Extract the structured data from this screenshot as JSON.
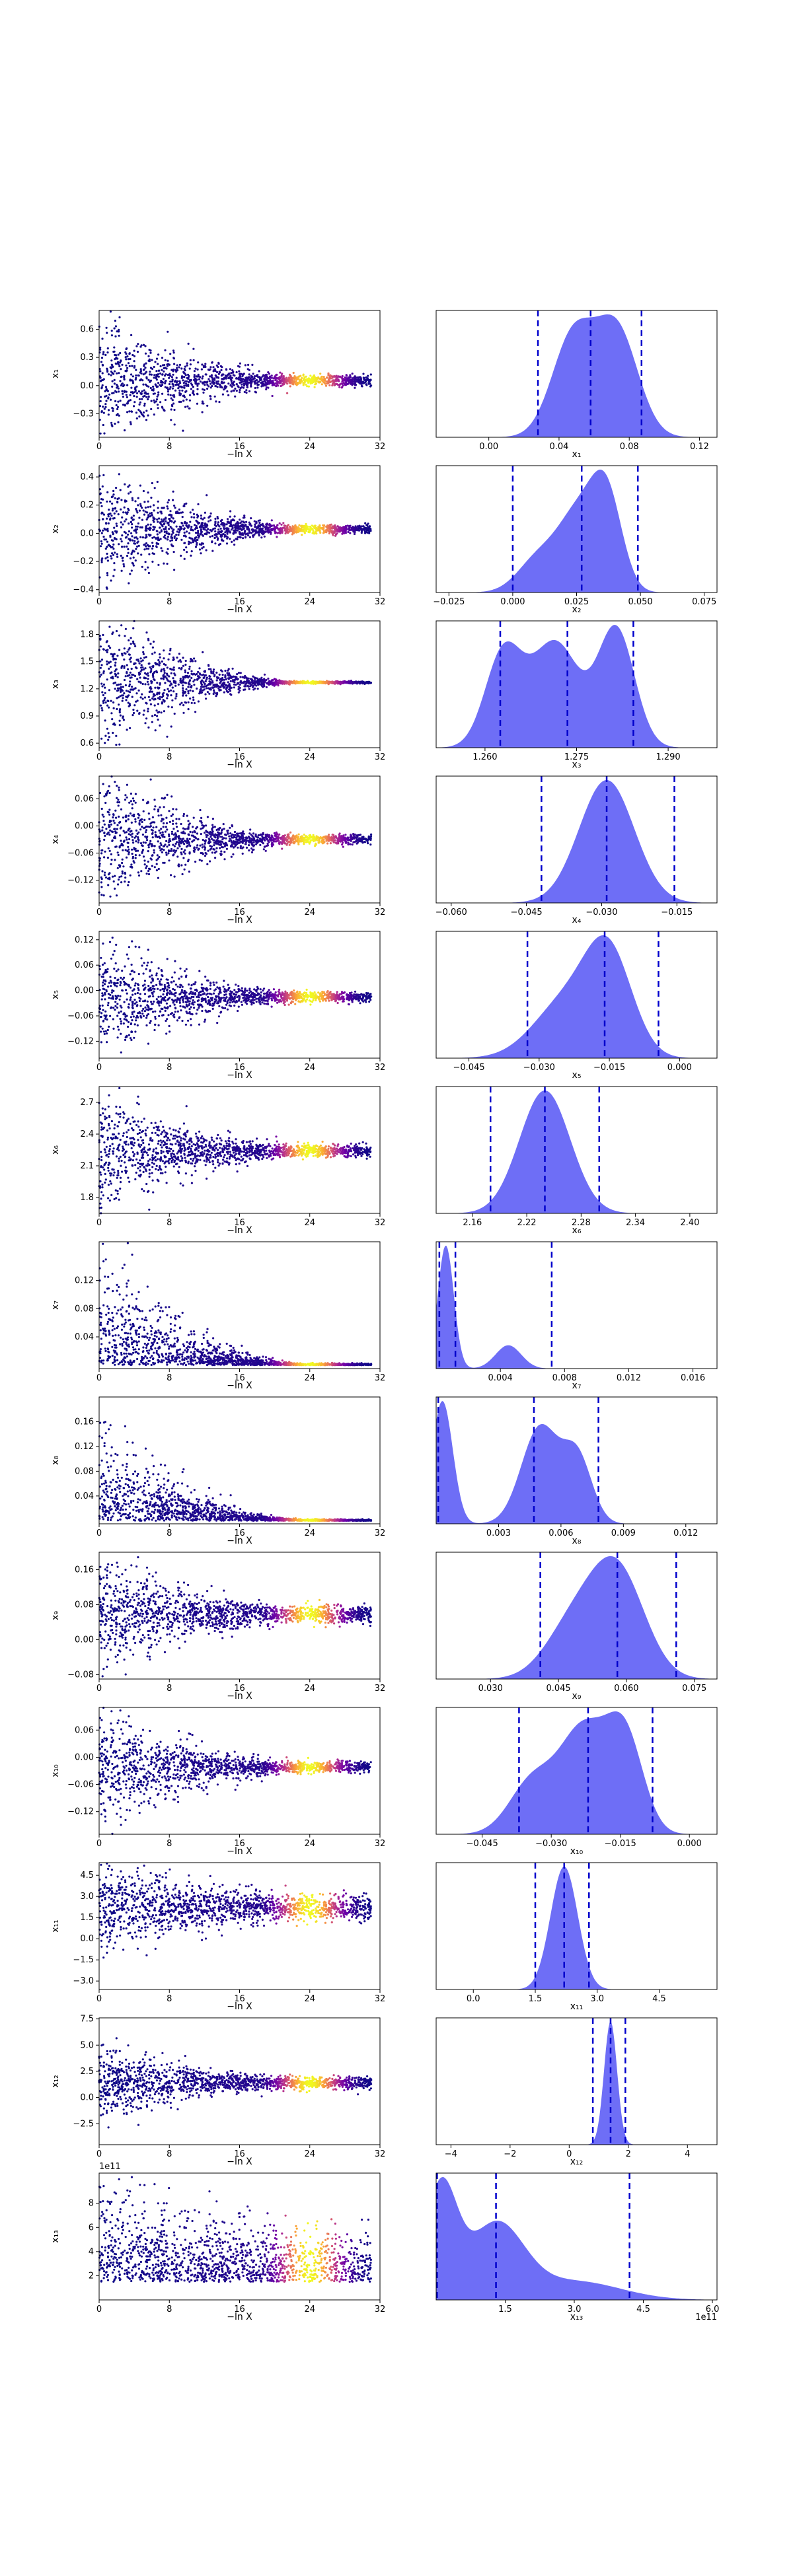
{
  "chart_data": {
    "type": "scatter",
    "layout": "trace-plot-grid",
    "left_xlabel": "−ln X",
    "left_xticks": [
      "0",
      "8",
      "16",
      "24",
      "32"
    ],
    "left_xlim": [
      0,
      32
    ],
    "cmap": [
      "#0d0887",
      "#6a00a8",
      "#b12a90",
      "#e16462",
      "#fca636",
      "#f0f921"
    ],
    "density_color": "#6666f5",
    "quantile_line_color": "#0000cc",
    "rows": [
      {
        "ylabel": "x₁",
        "yticks": [
          "−0.3",
          "0.0",
          "0.3",
          "0.6"
        ],
        "ylim": [
          -0.55,
          0.8
        ],
        "spread": [
          0.33,
          0.03
        ],
        "center": 0.055,
        "hist_xlabel": "x₁",
        "hist_xticks": [
          "0.00",
          "0.04",
          "0.08",
          "0.12"
        ],
        "hist_xlim": [
          -0.03,
          0.13
        ],
        "quantiles": [
          0.028,
          0.058,
          0.087
        ],
        "modes": [
          [
            0.048,
            0.012,
            0.85
          ],
          [
            0.073,
            0.012,
            0.9
          ]
        ],
        "offset": ""
      },
      {
        "ylabel": "x₂",
        "yticks": [
          "−0.4",
          "−0.2",
          "0.0",
          "0.2",
          "0.4"
        ],
        "ylim": [
          -0.42,
          0.48
        ],
        "spread": [
          0.22,
          0.015
        ],
        "center": 0.03,
        "hist_xlabel": "x₂",
        "hist_xticks": [
          "−0.025",
          "0.000",
          "0.025",
          "0.050",
          "0.075"
        ],
        "hist_xlim": [
          -0.03,
          0.08
        ],
        "quantiles": [
          0.0,
          0.027,
          0.049
        ],
        "modes": [
          [
            0.01,
            0.008,
            0.35
          ],
          [
            0.026,
            0.008,
            0.8
          ],
          [
            0.037,
            0.006,
            0.9
          ]
        ],
        "offset": ""
      },
      {
        "ylabel": "x₃",
        "yticks": [
          "0.6",
          "0.9",
          "1.2",
          "1.5",
          "1.8"
        ],
        "ylim": [
          0.55,
          1.95
        ],
        "spread": [
          0.4,
          0.006
        ],
        "center": 1.27,
        "hist_xlabel": "x₃",
        "hist_xticks": [
          "1.260",
          "1.275",
          "1.290"
        ],
        "hist_xlim": [
          1.252,
          1.298
        ],
        "quantiles": [
          1.2625,
          1.2735,
          1.2843
        ],
        "modes": [
          [
            1.263,
            0.003,
            0.75
          ],
          [
            1.2715,
            0.004,
            0.85
          ],
          [
            1.2815,
            0.003,
            0.95
          ]
        ],
        "offset": ""
      },
      {
        "ylabel": "x₄",
        "yticks": [
          "−0.12",
          "−0.06",
          "0.00",
          "0.06"
        ],
        "ylim": [
          -0.17,
          0.11
        ],
        "spread": [
          0.075,
          0.005
        ],
        "center": -0.03,
        "hist_xlabel": "x₄",
        "hist_xticks": [
          "−0.060",
          "−0.045",
          "−0.030",
          "−0.015"
        ],
        "hist_xlim": [
          -0.063,
          -0.007
        ],
        "quantiles": [
          -0.042,
          -0.029,
          -0.0155
        ],
        "modes": [
          [
            -0.029,
            0.0055,
            0.95
          ]
        ],
        "offset": ""
      },
      {
        "ylabel": "x₅",
        "yticks": [
          "−0.12",
          "−0.06",
          "0.00",
          "0.06",
          "0.12"
        ],
        "ylim": [
          -0.16,
          0.14
        ],
        "spread": [
          0.065,
          0.006
        ],
        "center": -0.015,
        "hist_xlabel": "x₅",
        "hist_xticks": [
          "−0.045",
          "−0.030",
          "−0.015",
          "0.000"
        ],
        "hist_xlim": [
          -0.052,
          0.008
        ],
        "quantiles": [
          -0.0325,
          -0.016,
          -0.0045
        ],
        "modes": [
          [
            -0.024,
            0.007,
            0.55
          ],
          [
            -0.015,
            0.005,
            0.9
          ]
        ],
        "offset": ""
      },
      {
        "ylabel": "x₆",
        "yticks": [
          "1.8",
          "2.1",
          "2.4",
          "2.7"
        ],
        "ylim": [
          1.65,
          2.85
        ],
        "spread": [
          0.27,
          0.03
        ],
        "center": 2.24,
        "hist_xlabel": "x₆",
        "hist_xticks": [
          "2.16",
          "2.22",
          "2.28",
          "2.34",
          "2.40"
        ],
        "hist_xlim": [
          2.12,
          2.43
        ],
        "quantiles": [
          2.18,
          2.24,
          2.3
        ],
        "modes": [
          [
            2.24,
            0.028,
            0.95
          ]
        ],
        "offset": ""
      },
      {
        "ylabel": "x₇",
        "yticks": [
          "0.04",
          "0.08",
          "0.12"
        ],
        "ylim": [
          -0.005,
          0.175
        ],
        "spread": [
          0.07,
          0.001
        ],
        "center": 0.0,
        "hist_xlabel": "x₇",
        "hist_xticks": [
          "0.004",
          "0.008",
          "0.012",
          "0.016"
        ],
        "hist_xlim": [
          0.0,
          0.0175
        ],
        "quantiles": [
          0.0002,
          0.0012,
          0.0072
        ],
        "modes": [
          [
            0.0006,
            0.0005,
            0.95
          ],
          [
            0.0045,
            0.0008,
            0.18
          ]
        ],
        "offset": ""
      },
      {
        "ylabel": "x₈",
        "yticks": [
          "0.04",
          "0.08",
          "0.12",
          "0.16"
        ],
        "ylim": [
          -0.005,
          0.2
        ],
        "spread": [
          0.07,
          0.001
        ],
        "center": 0.0,
        "hist_xlabel": "x₈",
        "hist_xticks": [
          "0.003",
          "0.006",
          "0.009",
          "0.012"
        ],
        "hist_xlim": [
          0.0,
          0.0135
        ],
        "quantiles": [
          0.0001,
          0.0047,
          0.0078
        ],
        "modes": [
          [
            0.0003,
            0.0005,
            0.95
          ],
          [
            0.005,
            0.0009,
            0.75
          ],
          [
            0.0068,
            0.0007,
            0.5
          ]
        ],
        "offset": ""
      },
      {
        "ylabel": "x₉",
        "yticks": [
          "−0.08",
          "0.00",
          "0.08",
          "0.16"
        ],
        "ylim": [
          -0.09,
          0.2
        ],
        "spread": [
          0.065,
          0.01
        ],
        "center": 0.058,
        "hist_xlabel": "x₉",
        "hist_xticks": [
          "0.030",
          "0.045",
          "0.060",
          "0.075"
        ],
        "hist_xlim": [
          0.018,
          0.08
        ],
        "quantiles": [
          0.041,
          0.058,
          0.071
        ],
        "modes": [
          [
            0.058,
            0.006,
            0.95
          ],
          [
            0.048,
            0.006,
            0.45
          ]
        ],
        "offset": ""
      },
      {
        "ylabel": "x₁₀",
        "yticks": [
          "−0.12",
          "−0.06",
          "0.00",
          "0.06"
        ],
        "ylim": [
          -0.17,
          0.11
        ],
        "spread": [
          0.065,
          0.006
        ],
        "center": -0.022,
        "hist_xlabel": "x₁₀",
        "hist_xticks": [
          "−0.045",
          "−0.030",
          "−0.015",
          "0.000"
        ],
        "hist_xlim": [
          -0.055,
          0.006
        ],
        "quantiles": [
          -0.037,
          -0.022,
          -0.008
        ],
        "modes": [
          [
            -0.034,
            0.005,
            0.45
          ],
          [
            -0.023,
            0.005,
            0.85
          ],
          [
            -0.014,
            0.004,
            0.8
          ]
        ],
        "offset": ""
      },
      {
        "ylabel": "x₁₁",
        "yticks": [
          "−3.0",
          "−1.5",
          "0.0",
          "1.5",
          "3.0",
          "4.5"
        ],
        "ylim": [
          -3.6,
          5.4
        ],
        "spread": [
          1.6,
          0.5
        ],
        "center": 2.2,
        "hist_xlabel": "x₁₁",
        "hist_xticks": [
          "0.0",
          "1.5",
          "3.0",
          "4.5"
        ],
        "hist_xlim": [
          -0.9,
          5.9
        ],
        "quantiles": [
          1.5,
          2.2,
          2.8
        ],
        "modes": [
          [
            2.2,
            0.33,
            0.95
          ]
        ],
        "offset": ""
      },
      {
        "ylabel": "x₁₂",
        "yticks": [
          "−2.5",
          "0.0",
          "2.5",
          "5.0",
          "7.5"
        ],
        "ylim": [
          -4.5,
          7.6
        ],
        "spread": [
          1.8,
          0.3
        ],
        "center": 1.4,
        "hist_xlabel": "x₁₂",
        "hist_xticks": [
          "−4",
          "−2",
          "0",
          "2",
          "4"
        ],
        "hist_xlim": [
          -4.5,
          5.0
        ],
        "quantiles": [
          0.8,
          1.4,
          1.9
        ],
        "modes": [
          [
            1.4,
            0.22,
            0.95
          ]
        ],
        "offset": ""
      },
      {
        "ylabel": "x₁₃",
        "yticks": [
          "2",
          "4",
          "6",
          "8"
        ],
        "ylim": [
          0.0,
          10.5
        ],
        "spread": [
          4.0,
          2.0
        ],
        "center": 1.5,
        "hist_xlabel": "x₁₃",
        "hist_xticks": [
          "1.5",
          "3.0",
          "4.5",
          "6.0"
        ],
        "hist_xlim": [
          0.0,
          6.1
        ],
        "quantiles": [
          0.02,
          1.3,
          4.2
        ],
        "modes": [
          [
            0.1,
            0.35,
            0.9
          ],
          [
            1.3,
            0.6,
            0.6
          ],
          [
            3.0,
            1.0,
            0.15
          ]
        ],
        "offset": "1e11"
      }
    ]
  }
}
